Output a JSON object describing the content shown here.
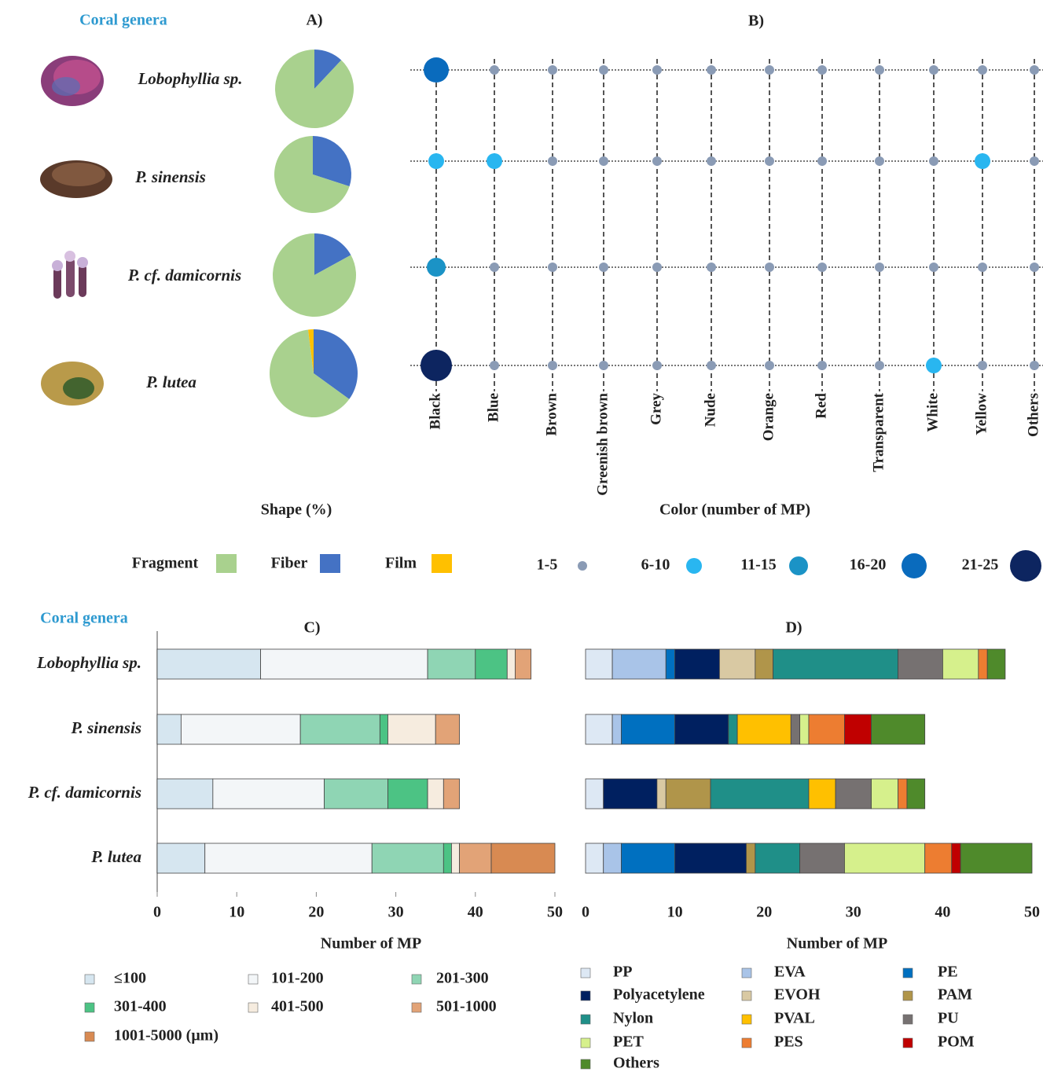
{
  "chart_data": [
    {
      "type": "pie",
      "title": "A)",
      "ylabel": "Coral genera",
      "xlabel": "Shape (%)",
      "categories": [
        "Fragment",
        "Fiber",
        "Film"
      ],
      "colors": [
        "#a9d18e",
        "#4472c4",
        "#ffc000"
      ],
      "series": [
        {
          "name": "Lobophyllia sp.",
          "values": [
            88,
            12,
            0
          ]
        },
        {
          "name": "P. sinensis",
          "values": [
            70,
            30,
            0
          ]
        },
        {
          "name": "P. cf. damicornis",
          "values": [
            83,
            17,
            0
          ]
        },
        {
          "name": "P. lutea",
          "values": [
            63,
            35,
            2
          ]
        }
      ]
    },
    {
      "type": "bubble-grid",
      "title": "B)",
      "xlabel": "Color (number of MP)",
      "categories": [
        "Black",
        "Blue",
        "Brown",
        "Greenish brown",
        "Grey",
        "Nude",
        "Orange",
        "Red",
        "Transparent",
        "White",
        "Yellow",
        "Others"
      ],
      "series": [
        {
          "values": [
            18,
            3,
            3,
            3,
            3,
            3,
            3,
            3,
            3,
            3,
            3,
            3
          ]
        },
        {
          "values": [
            8,
            8,
            3,
            3,
            3,
            3,
            3,
            3,
            3,
            3,
            8,
            3
          ]
        },
        {
          "values": [
            13,
            3,
            3,
            3,
            3,
            3,
            3,
            3,
            3,
            3,
            3,
            3
          ]
        },
        {
          "values": [
            23,
            3,
            3,
            3,
            3,
            3,
            3,
            3,
            3,
            8,
            3,
            3
          ]
        }
      ],
      "size_classes": [
        {
          "min": 1,
          "max": 5,
          "label": "1-5",
          "color": "#8a9bb5"
        },
        {
          "min": 6,
          "max": 10,
          "label": "6-10",
          "color": "#29b6f0"
        },
        {
          "min": 11,
          "max": 15,
          "label": "11-15",
          "color": "#1b93c6"
        },
        {
          "min": 16,
          "max": 20,
          "label": "16-20",
          "color": "#0a6bbd"
        },
        {
          "min": 21,
          "max": 25,
          "label": "21-25",
          "color": "#0d2560"
        }
      ]
    },
    {
      "type": "stacked-hbar",
      "title": "C)",
      "ylabel": "Coral genera",
      "xlabel": "Number of MP",
      "categories": [
        "Lobophyllia sp.",
        "P. sinensis",
        "P. cf. damicornis",
        "P. lutea"
      ],
      "xlim": [
        0,
        50
      ],
      "xticks": [
        0,
        10,
        20,
        30,
        40,
        50
      ],
      "series": [
        {
          "name": "≤100",
          "color": "#d6e6f0",
          "values": [
            13,
            3,
            7,
            6
          ]
        },
        {
          "name": "101-200",
          "color": "#f3f6f8",
          "values": [
            21,
            15,
            14,
            21
          ]
        },
        {
          "name": "201-300",
          "color": "#8fd5b4",
          "values": [
            6,
            10,
            8,
            9
          ]
        },
        {
          "name": "301-400",
          "color": "#4cc384",
          "values": [
            4,
            1,
            5,
            1
          ]
        },
        {
          "name": "401-500",
          "color": "#f6ecdf",
          "values": [
            1,
            6,
            2,
            1
          ]
        },
        {
          "name": "501-1000",
          "color": "#e2a377",
          "values": [
            2,
            3,
            2,
            4
          ]
        },
        {
          "name": "1001-5000 (μm)",
          "color": "#d88a52",
          "values": [
            0,
            0,
            0,
            8
          ]
        }
      ]
    },
    {
      "type": "stacked-hbar",
      "title": "D)",
      "xlabel": "Number of MP",
      "xlim": [
        0,
        50
      ],
      "xticks": [
        0,
        10,
        20,
        30,
        40,
        50
      ],
      "series": [
        {
          "name": "PP",
          "color": "#dde8f4",
          "values": [
            3,
            3,
            2,
            2
          ]
        },
        {
          "name": "EVA",
          "color": "#a9c4e8",
          "values": [
            6,
            1,
            0,
            2
          ]
        },
        {
          "name": "PE",
          "color": "#0070c0",
          "values": [
            1,
            6,
            0,
            6
          ]
        },
        {
          "name": "Polyacetylene",
          "color": "#002060",
          "values": [
            5,
            6,
            6,
            8
          ]
        },
        {
          "name": "EVOH",
          "color": "#d9c9a3",
          "values": [
            4,
            0,
            1,
            0
          ]
        },
        {
          "name": "PAM",
          "color": "#b0954a",
          "values": [
            2,
            0,
            5,
            1
          ]
        },
        {
          "name": "Nylon",
          "color": "#1f8f88",
          "values": [
            14,
            1,
            11,
            5
          ]
        },
        {
          "name": "PVAL",
          "color": "#ffc000",
          "values": [
            0,
            6,
            3,
            0
          ]
        },
        {
          "name": "PU",
          "color": "#767171",
          "values": [
            5,
            1,
            4,
            5
          ]
        },
        {
          "name": "PET",
          "color": "#d6f08c",
          "values": [
            4,
            1,
            3,
            9
          ]
        },
        {
          "name": "PES",
          "color": "#ed7d31",
          "values": [
            1,
            4,
            1,
            3
          ]
        },
        {
          "name": "POM",
          "color": "#c00000",
          "values": [
            0,
            3,
            0,
            1
          ]
        },
        {
          "name": "Others",
          "color": "#4f8a2b",
          "values": [
            2,
            6,
            2,
            8
          ]
        }
      ]
    }
  ]
}
